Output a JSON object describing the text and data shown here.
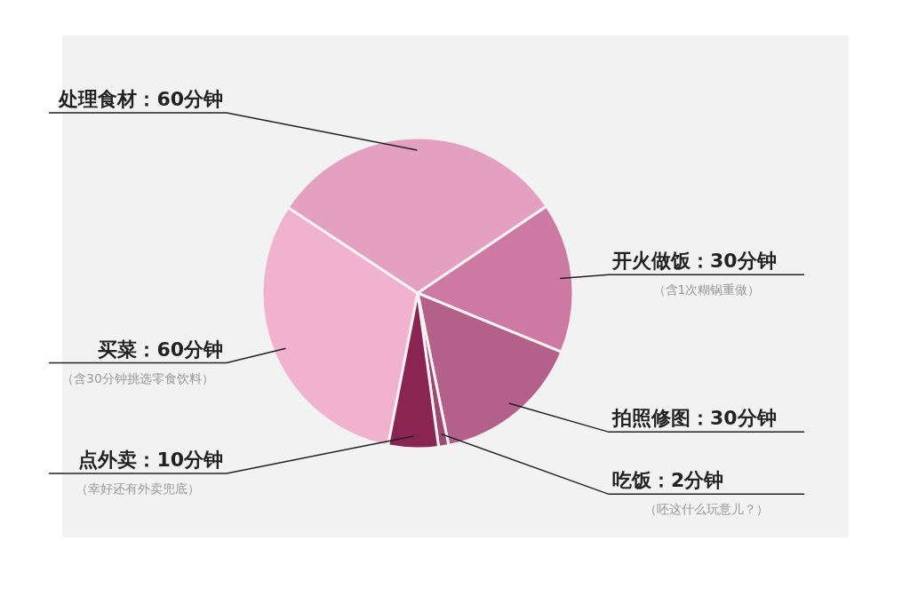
{
  "chart_data": {
    "type": "pie",
    "categories": [
      "买菜：60分钟",
      "处理食材：60分钟",
      "开火做饭：30分钟",
      "拍照修图：30分钟",
      "吃饭：2分钟",
      "点外卖：10分钟"
    ],
    "values": [
      60,
      60,
      30,
      30,
      2,
      10
    ],
    "colors": [
      "#f0b2cf",
      "#e3a0c0",
      "#cc7aa3",
      "#b3608a",
      "#9b4a72",
      "#8a2452"
    ],
    "annotations": [
      {
        "text": "（含30分钟挑选零食饮料）",
        "x": "买菜：60分钟"
      },
      {
        "text": "（含1次糊锅重做）",
        "x": "开火做饭：30分钟"
      },
      {
        "text": "（呸这什么玩意儿？）",
        "x": "吃饭：2分钟"
      },
      {
        "text": "（幸好还有外卖兜底）",
        "x": "点外卖：10分钟"
      }
    ]
  }
}
